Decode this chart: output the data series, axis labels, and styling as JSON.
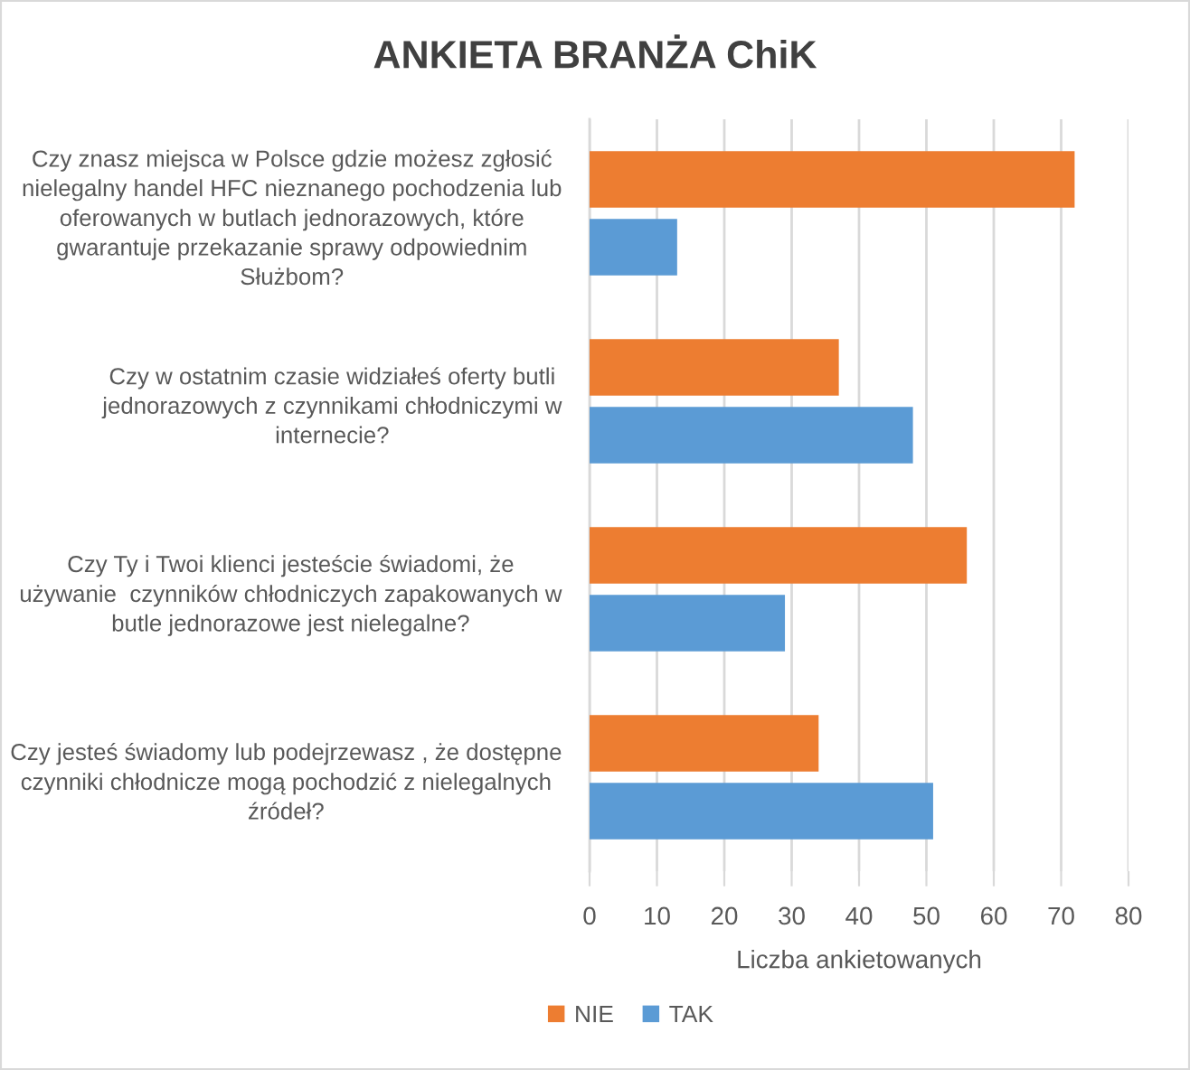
{
  "chart_data": {
    "type": "bar",
    "orientation": "horizontal",
    "title": "ANKIETA BRANŻA ChiK",
    "xlabel": "Liczba ankietowanych",
    "categories": [
      "Czy znasz miejsca w Polsce gdzie możesz zgłosić\nnielegalny handel HFC nieznanego pochodzenia lub\noferowanych w butlach jednorazowych, które\ngwarantuje przekazanie sprawy odpowiednim\nSłużbom?",
      "Czy w ostatnim czasie widziałeś oferty butli\njednorazowych z czynnikami chłodniczymi w\ninternecie?",
      "Czy Ty i Twoi klienci jesteście świadomi, że\nużywanie  czynników chłodniczych zapakowanych w\nbutle jednorazowe jest nielegalne?",
      "Czy jesteś świadomy lub podejrzewasz , że dostępne\nczynniki chłodnicze mogą pochodzić z nielegalnych\nźródeł?"
    ],
    "series": [
      {
        "name": "NIE",
        "color": "#ed7d31",
        "values": [
          72,
          37,
          56,
          34
        ]
      },
      {
        "name": "TAK",
        "color": "#5b9bd5",
        "values": [
          13,
          48,
          29,
          51
        ]
      }
    ],
    "xlim": [
      0,
      80
    ],
    "xticks": [
      0,
      10,
      20,
      30,
      40,
      50,
      60,
      70,
      80
    ],
    "grid": "x",
    "legend": "bottom"
  }
}
